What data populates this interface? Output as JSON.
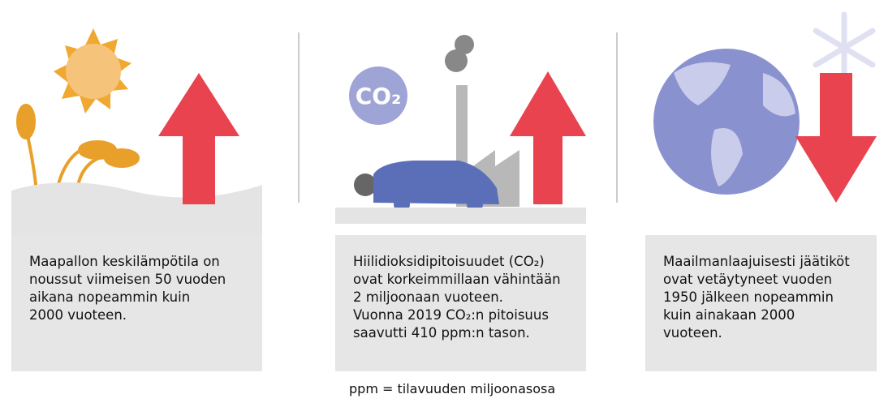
{
  "panels": [
    {
      "lines": [
        "Maapallon keskilämpötila on",
        "noussut viimeisen 50 vuoden",
        "aikana nopeammin kuin",
        "2000 vuoteen."
      ]
    },
    {
      "icon": "CO₂",
      "lines": [
        "Hiilidioksidipitoisuudet (CO₂)",
        "ovat korkeimmillaan vähintään",
        "2 miljoonaan vuoteen.",
        "Vuonna 2019 CO₂:n pitoisuus",
        "saavutti 410 ppm:n tason."
      ]
    },
    {
      "lines": [
        "Maailmanlaajuisesti jäätiköt",
        "ovat vetäytyneet vuoden",
        "1950 jälkeen nopeammin",
        "kuin ainakaan 2000",
        "vuoteen."
      ]
    }
  ],
  "footnote": "ppm = tilavuuden miljoonasosa"
}
